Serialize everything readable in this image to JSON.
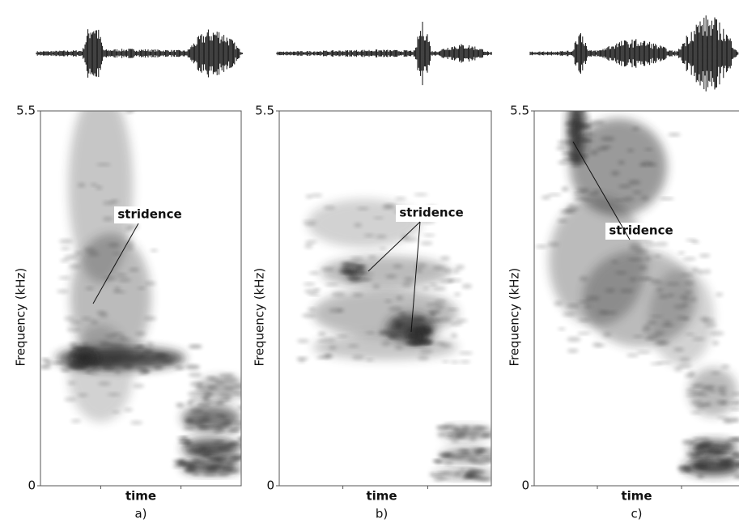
{
  "chart_data": [
    {
      "type": "spectrogram",
      "ylabel": "Frequency (kHz)",
      "xlabel": "time",
      "caption": "a)",
      "annotation": "stridence",
      "ylim": [
        0,
        5.5
      ],
      "yticks": [
        0,
        5.5
      ]
    },
    {
      "type": "spectrogram",
      "ylabel": "Frequency (kHz)",
      "xlabel": "time",
      "caption": "b)",
      "annotation": "stridence",
      "ylim": [
        0,
        5.5
      ],
      "yticks": [
        0,
        5.5
      ]
    },
    {
      "type": "spectrogram",
      "ylabel": "Frequency (kHz)",
      "xlabel": "time",
      "caption": "c)",
      "annotation": "stridence",
      "ylim": [
        0,
        5.5
      ],
      "yticks": [
        0,
        5.5
      ]
    }
  ]
}
